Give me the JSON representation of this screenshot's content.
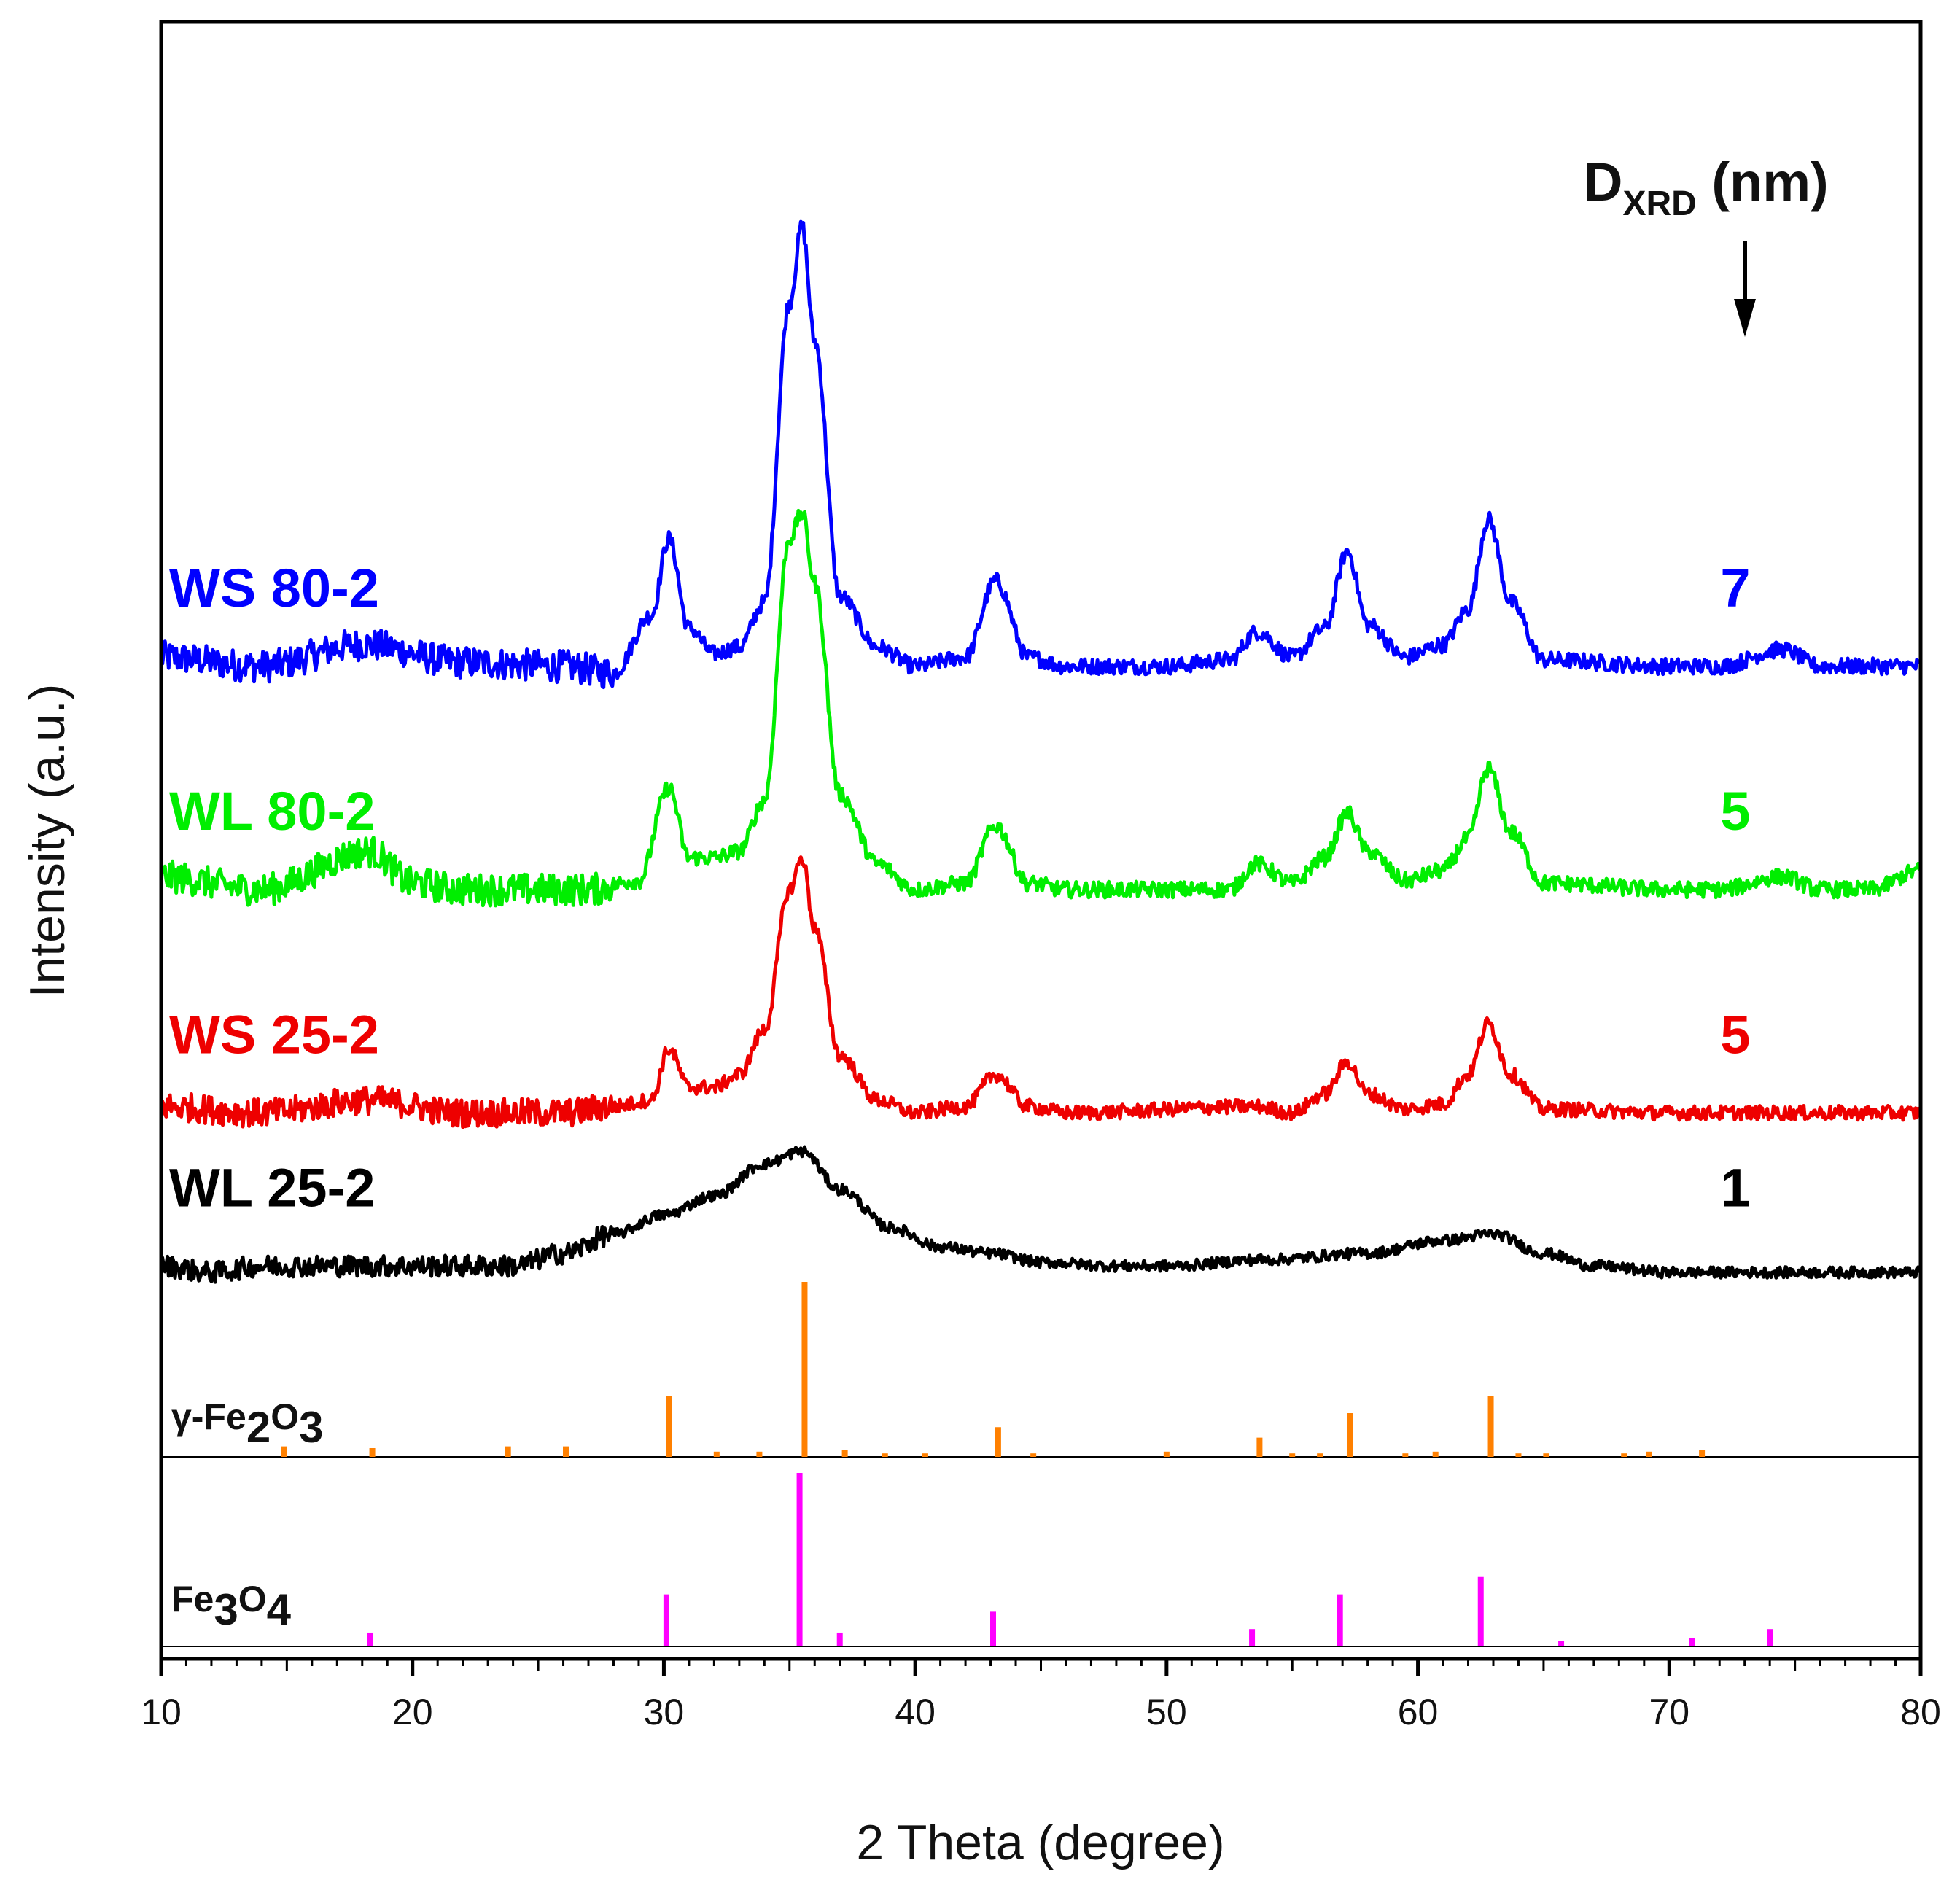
{
  "chart_data": {
    "type": "line",
    "title": "",
    "xlabel": "2 Theta (degree)",
    "ylabel": "Intensity (a.u.)",
    "xlim": [
      10,
      80
    ],
    "x_ticks": [
      10,
      20,
      30,
      40,
      50,
      60,
      70,
      80
    ],
    "y_ticks_shown": false,
    "size_header": {
      "main": "D",
      "sub": "XRD",
      "unit": " (nm)"
    },
    "series": [
      {
        "name": "WS 80-2",
        "color": "#0000ff",
        "dxrd": "7",
        "baseline": 4.7,
        "noise": 0.09,
        "points": [
          [
            10,
            0.12
          ],
          [
            14,
            0.05
          ],
          [
            18,
            0.22
          ],
          [
            22,
            0.08
          ],
          [
            26,
            0.05
          ],
          [
            28,
            0.0
          ],
          [
            29.5,
            0.45
          ],
          [
            30.2,
            1.05
          ],
          [
            31,
            0.35
          ],
          [
            32,
            0.15
          ],
          [
            33,
            0.2
          ],
          [
            34,
            0.55
          ],
          [
            35.0,
            2.9
          ],
          [
            35.5,
            3.5
          ],
          [
            36.0,
            2.6
          ],
          [
            37,
            0.6
          ],
          [
            38.5,
            0.2
          ],
          [
            40,
            0.05
          ],
          [
            42,
            0.12
          ],
          [
            43.2,
            0.72
          ],
          [
            44.5,
            0.12
          ],
          [
            46,
            0.05
          ],
          [
            50,
            0.05
          ],
          [
            52.5,
            0.1
          ],
          [
            53.6,
            0.32
          ],
          [
            55,
            0.12
          ],
          [
            56.3,
            0.35
          ],
          [
            57.2,
            0.95
          ],
          [
            58,
            0.38
          ],
          [
            59.5,
            0.12
          ],
          [
            61,
            0.22
          ],
          [
            62.0,
            0.5
          ],
          [
            62.8,
            1.2
          ],
          [
            63.7,
            0.55
          ],
          [
            65,
            0.1
          ],
          [
            70,
            0.05
          ],
          [
            72,
            0.05
          ],
          [
            74.5,
            0.18
          ],
          [
            76,
            0.05
          ],
          [
            80,
            0.05
          ]
        ]
      },
      {
        "name": "WL 80-2",
        "color": "#00ee00",
        "dxrd": "5",
        "baseline": 2.95,
        "noise": 0.09,
        "points": [
          [
            10,
            0.15
          ],
          [
            14,
            0.05
          ],
          [
            18.3,
            0.35
          ],
          [
            20,
            0.1
          ],
          [
            22,
            0.05
          ],
          [
            27,
            0.05
          ],
          [
            29,
            0.12
          ],
          [
            30.2,
            0.85
          ],
          [
            31,
            0.3
          ],
          [
            32,
            0.3
          ],
          [
            33,
            0.35
          ],
          [
            34,
            0.75
          ],
          [
            35.0,
            2.8
          ],
          [
            35.5,
            3.0
          ],
          [
            36.0,
            2.45
          ],
          [
            37,
            0.8
          ],
          [
            38.5,
            0.25
          ],
          [
            40,
            0.05
          ],
          [
            42,
            0.1
          ],
          [
            43.2,
            0.55
          ],
          [
            44.5,
            0.1
          ],
          [
            46,
            0.05
          ],
          [
            52.5,
            0.05
          ],
          [
            53.6,
            0.25
          ],
          [
            55,
            0.1
          ],
          [
            56.3,
            0.3
          ],
          [
            57.2,
            0.65
          ],
          [
            58,
            0.35
          ],
          [
            59.5,
            0.12
          ],
          [
            61,
            0.2
          ],
          [
            62.0,
            0.45
          ],
          [
            62.8,
            1.0
          ],
          [
            63.7,
            0.5
          ],
          [
            65,
            0.1
          ],
          [
            70,
            0.05
          ],
          [
            72,
            0.05
          ],
          [
            74.5,
            0.15
          ],
          [
            76,
            0.05
          ],
          [
            78,
            0.05
          ],
          [
            80,
            0.2
          ]
        ]
      },
      {
        "name": "WS 25-2",
        "color": "#ee0000",
        "dxrd": "5",
        "baseline": 1.2,
        "noise": 0.08,
        "points": [
          [
            10,
            0.1
          ],
          [
            14,
            0.05
          ],
          [
            18.3,
            0.15
          ],
          [
            22,
            0.05
          ],
          [
            26,
            0.05
          ],
          [
            28,
            0.1
          ],
          [
            29.5,
            0.15
          ],
          [
            30.2,
            0.55
          ],
          [
            31,
            0.25
          ],
          [
            32,
            0.25
          ],
          [
            33,
            0.35
          ],
          [
            34,
            0.7
          ],
          [
            35.0,
            1.8
          ],
          [
            35.5,
            2.05
          ],
          [
            36.0,
            1.5
          ],
          [
            37,
            0.5
          ],
          [
            38.5,
            0.15
          ],
          [
            40,
            0.05
          ],
          [
            42,
            0.1
          ],
          [
            43.2,
            0.35
          ],
          [
            44.5,
            0.1
          ],
          [
            46,
            0.05
          ],
          [
            53.6,
            0.1
          ],
          [
            55,
            0.05
          ],
          [
            56.3,
            0.2
          ],
          [
            57.2,
            0.45
          ],
          [
            58,
            0.2
          ],
          [
            59.5,
            0.08
          ],
          [
            61,
            0.12
          ],
          [
            62.0,
            0.35
          ],
          [
            62.8,
            0.75
          ],
          [
            63.7,
            0.35
          ],
          [
            65,
            0.08
          ],
          [
            70,
            0.05
          ],
          [
            80,
            0.05
          ]
        ]
      },
      {
        "name": "WL 25-2",
        "color": "#000000",
        "dxrd": "1",
        "baseline": 0.0,
        "noise": 0.06,
        "points": [
          [
            10,
            0.05
          ],
          [
            12,
            0.0
          ],
          [
            14,
            0.05
          ],
          [
            16,
            0.05
          ],
          [
            20,
            0.05
          ],
          [
            24,
            0.05
          ],
          [
            26,
            0.15
          ],
          [
            28,
            0.3
          ],
          [
            30,
            0.45
          ],
          [
            32,
            0.6
          ],
          [
            34,
            0.85
          ],
          [
            35.5,
            0.95
          ],
          [
            37,
            0.65
          ],
          [
            39,
            0.35
          ],
          [
            41,
            0.2
          ],
          [
            43,
            0.15
          ],
          [
            45,
            0.08
          ],
          [
            48,
            0.05
          ],
          [
            50,
            0.05
          ],
          [
            54,
            0.1
          ],
          [
            58,
            0.15
          ],
          [
            61,
            0.25
          ],
          [
            63,
            0.3
          ],
          [
            65,
            0.15
          ],
          [
            67,
            0.05
          ],
          [
            70,
            0.0
          ],
          [
            80,
            0.0
          ]
        ]
      }
    ],
    "reference_patterns": [
      {
        "name": "γ-Fe2O3",
        "label_parts": {
          "prefix": "γ-Fe",
          "sub1": "2",
          "mid": "O",
          "sub2": "3"
        },
        "color": "#ff8000",
        "peaks": [
          [
            14.9,
            6
          ],
          [
            18.4,
            5
          ],
          [
            23.8,
            6
          ],
          [
            26.1,
            6
          ],
          [
            30.2,
            35
          ],
          [
            32.1,
            3
          ],
          [
            33.8,
            3
          ],
          [
            35.6,
            100
          ],
          [
            37.2,
            4
          ],
          [
            38.8,
            2
          ],
          [
            40.4,
            2
          ],
          [
            43.3,
            17
          ],
          [
            44.7,
            2
          ],
          [
            50.0,
            3
          ],
          [
            53.7,
            11
          ],
          [
            55.0,
            2
          ],
          [
            56.1,
            2
          ],
          [
            57.3,
            25
          ],
          [
            59.5,
            2
          ],
          [
            60.7,
            3
          ],
          [
            62.9,
            35
          ],
          [
            64.0,
            2
          ],
          [
            65.1,
            2
          ],
          [
            68.2,
            2
          ],
          [
            69.2,
            3
          ],
          [
            71.3,
            4
          ]
        ]
      },
      {
        "name": "Fe3O4",
        "label_parts": {
          "prefix": "Fe",
          "sub1": "3",
          "mid": "O",
          "sub2": "4"
        },
        "color": "#ff00ff",
        "peaks": [
          [
            18.3,
            8
          ],
          [
            30.1,
            30
          ],
          [
            35.4,
            100
          ],
          [
            37.0,
            8
          ],
          [
            43.1,
            20
          ],
          [
            53.4,
            10
          ],
          [
            56.9,
            30
          ],
          [
            62.5,
            40
          ],
          [
            65.7,
            3
          ],
          [
            70.9,
            5
          ],
          [
            74.0,
            10
          ]
        ]
      }
    ]
  }
}
